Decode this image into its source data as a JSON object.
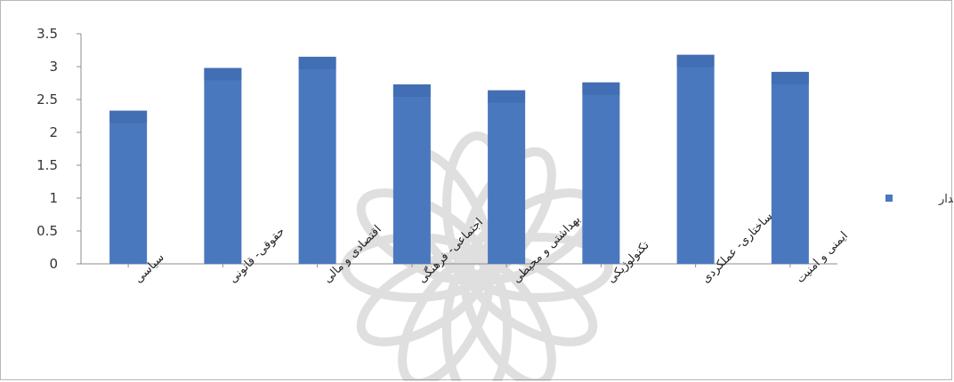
{
  "chart_data": {
    "type": "bar",
    "title": "",
    "xlabel": "",
    "ylabel": "",
    "ylim": [
      0,
      3.5
    ],
    "yticks": [
      "0",
      "0.5",
      "1",
      "1.5",
      "2",
      "2.5",
      "3",
      "3.5"
    ],
    "grid": false,
    "legend": {
      "position": "right",
      "entries": [
        "مقدار"
      ]
    },
    "categories": [
      "سیاسی",
      "حقوقی- قانونی",
      "اقتصادی و مالی",
      "اجتماعی- فرهنگی",
      "بهداشتی و محیطی",
      "تکنولوژیکی",
      "ساختاری- عملکردی",
      "ایمنی و امنیت"
    ],
    "series": [
      {
        "name": "مقدار",
        "values": [
          2.33,
          2.98,
          3.15,
          2.73,
          2.64,
          2.76,
          3.18,
          2.92
        ]
      }
    ],
    "colors": {
      "bar": "#4a78bf",
      "bar_top": "#3d67ae",
      "axis": "#8c8c8c"
    }
  }
}
